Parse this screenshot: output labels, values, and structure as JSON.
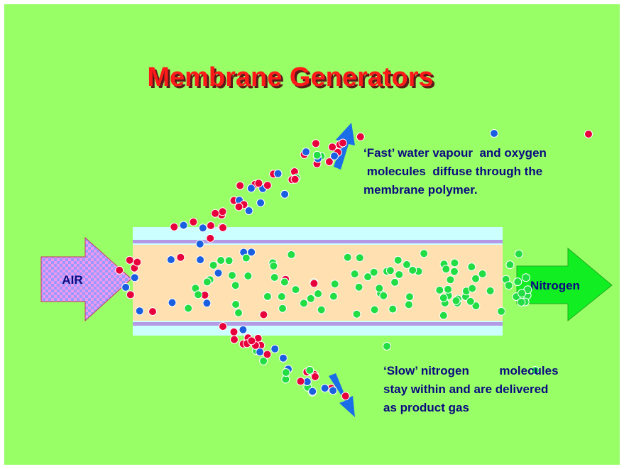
{
  "title": "Membrane Generators",
  "labels": {
    "input": "AIR",
    "output": "Nitrogen"
  },
  "captions": [
    {
      "lines": [
        "‘Fast’ water vapour  and oxygen",
        " molecules  diffuse through the",
        "membrane polymer."
      ]
    },
    {
      "lines": [
        "‘Slow’ nitrogen         molecules",
        "stay within and are delivered",
        "as product gas"
      ]
    }
  ]
}
